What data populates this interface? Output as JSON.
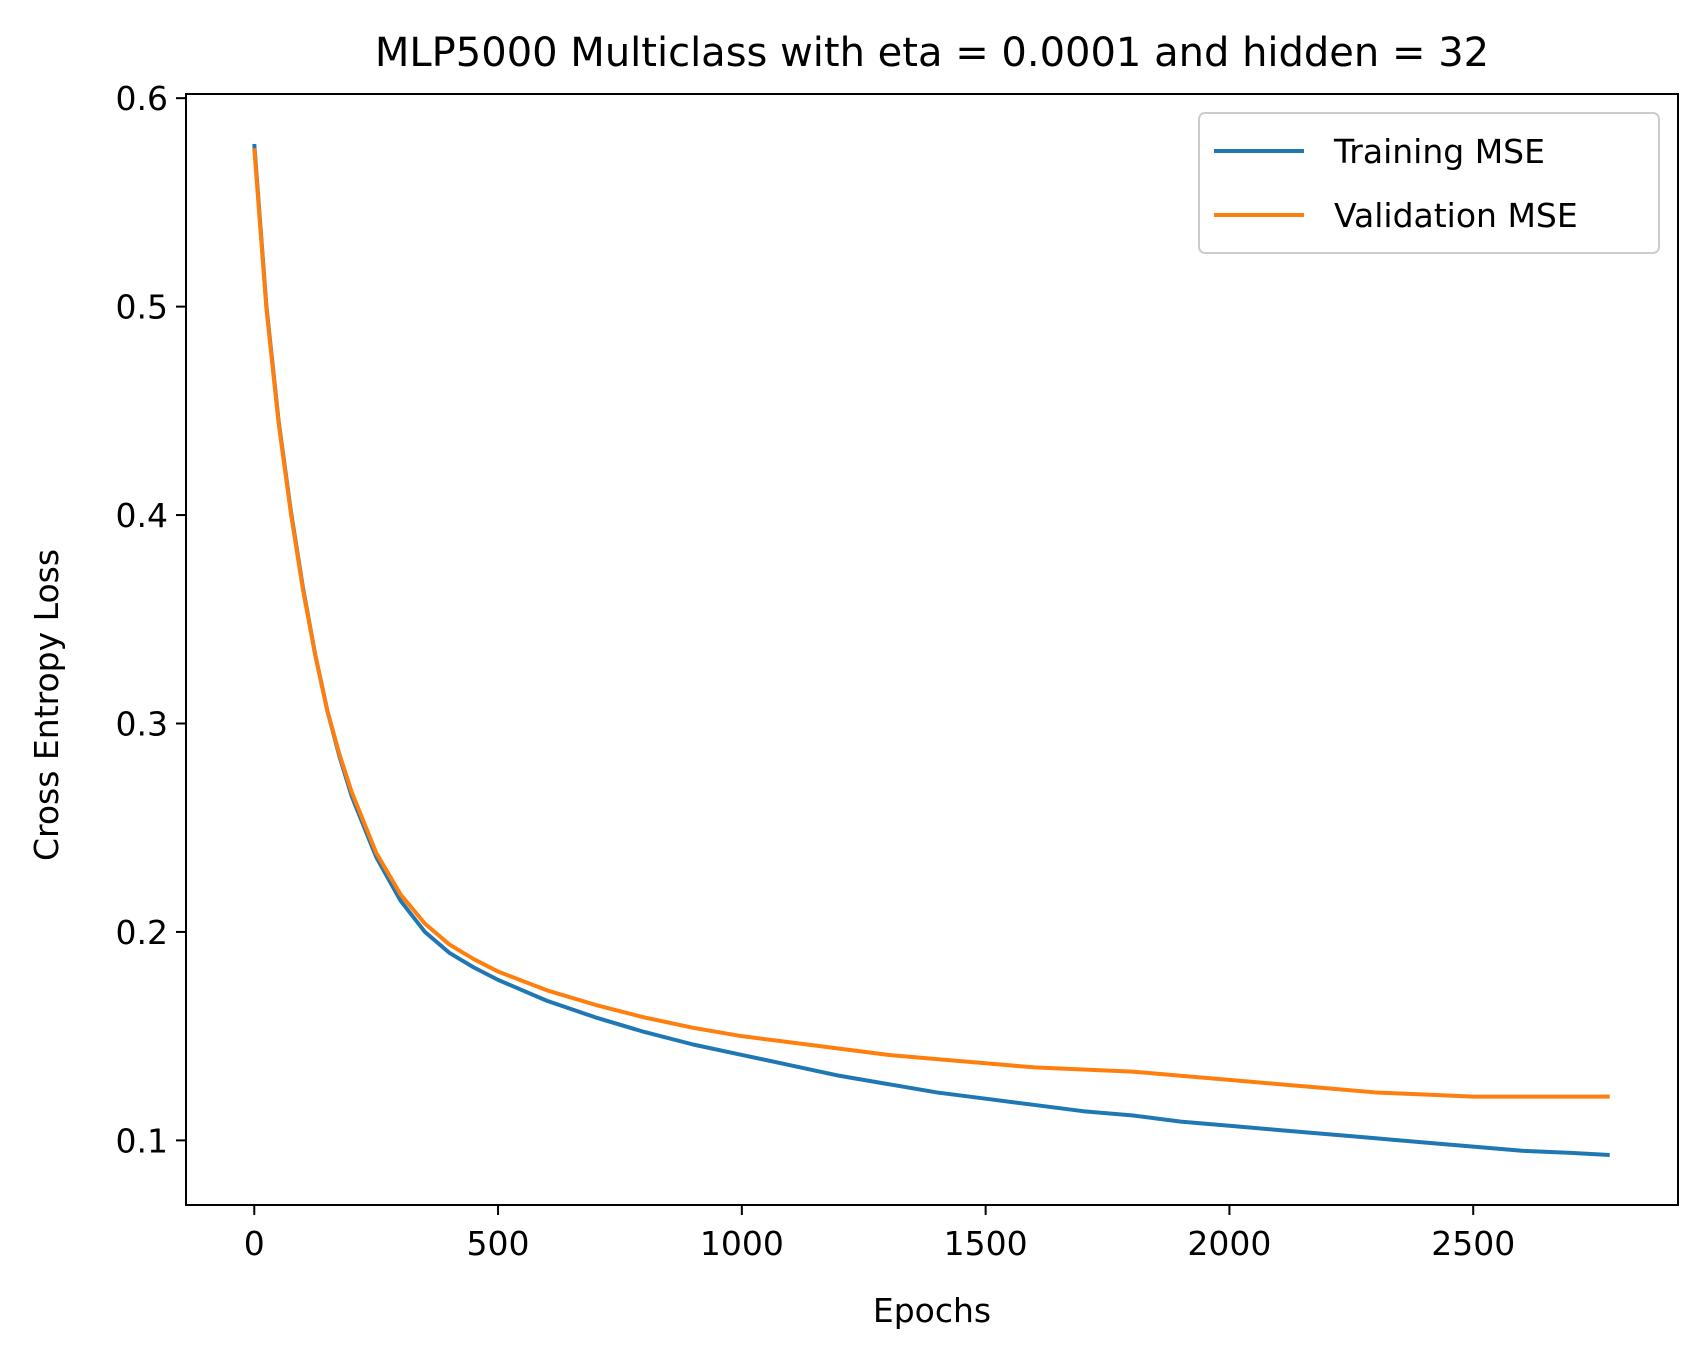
{
  "chart_data": {
    "type": "line",
    "title": "MLP5000 Multiclass with eta = 0.0001 and hidden = 32",
    "xlabel": "Epochs",
    "ylabel": "Cross Entropy Loss",
    "xlim": [
      -140,
      2920
    ],
    "ylim": [
      0.069,
      0.602
    ],
    "xticks": [
      0,
      500,
      1000,
      1500,
      2000,
      2500
    ],
    "yticks": [
      0.1,
      0.2,
      0.3,
      0.4,
      0.5,
      0.6
    ],
    "xtick_labels": [
      "0",
      "500",
      "1000",
      "1500",
      "2000",
      "2500"
    ],
    "ytick_labels": [
      "0.1",
      "0.2",
      "0.3",
      "0.4",
      "0.5",
      "0.6"
    ],
    "grid": false,
    "legend_position": "top-right",
    "series": [
      {
        "name": "Training MSE",
        "color": "#1f77b4",
        "x": [
          0,
          25,
          50,
          75,
          100,
          125,
          150,
          175,
          200,
          250,
          300,
          350,
          400,
          450,
          500,
          600,
          700,
          800,
          900,
          1000,
          1100,
          1200,
          1300,
          1400,
          1500,
          1600,
          1700,
          1800,
          1900,
          2000,
          2100,
          2200,
          2300,
          2400,
          2500,
          2600,
          2700,
          2780
        ],
        "y": [
          0.578,
          0.5,
          0.445,
          0.402,
          0.365,
          0.333,
          0.306,
          0.284,
          0.265,
          0.236,
          0.215,
          0.2,
          0.19,
          0.183,
          0.177,
          0.167,
          0.159,
          0.152,
          0.146,
          0.141,
          0.136,
          0.131,
          0.127,
          0.123,
          0.12,
          0.117,
          0.114,
          0.112,
          0.109,
          0.107,
          0.105,
          0.103,
          0.101,
          0.099,
          0.097,
          0.095,
          0.094,
          0.093
        ]
      },
      {
        "name": "Validation MSE",
        "color": "#ff7f0e",
        "x": [
          0,
          25,
          50,
          75,
          100,
          125,
          150,
          175,
          200,
          250,
          300,
          350,
          400,
          450,
          500,
          600,
          700,
          800,
          900,
          1000,
          1100,
          1200,
          1300,
          1400,
          1500,
          1600,
          1700,
          1800,
          1900,
          2000,
          2100,
          2200,
          2300,
          2400,
          2500,
          2600,
          2700,
          2780
        ],
        "y": [
          0.576,
          0.499,
          0.444,
          0.401,
          0.364,
          0.333,
          0.306,
          0.285,
          0.267,
          0.238,
          0.218,
          0.204,
          0.194,
          0.187,
          0.181,
          0.172,
          0.165,
          0.159,
          0.154,
          0.15,
          0.147,
          0.144,
          0.141,
          0.139,
          0.137,
          0.135,
          0.134,
          0.133,
          0.131,
          0.129,
          0.127,
          0.125,
          0.123,
          0.122,
          0.121,
          0.121,
          0.121,
          0.121
        ]
      }
    ]
  }
}
